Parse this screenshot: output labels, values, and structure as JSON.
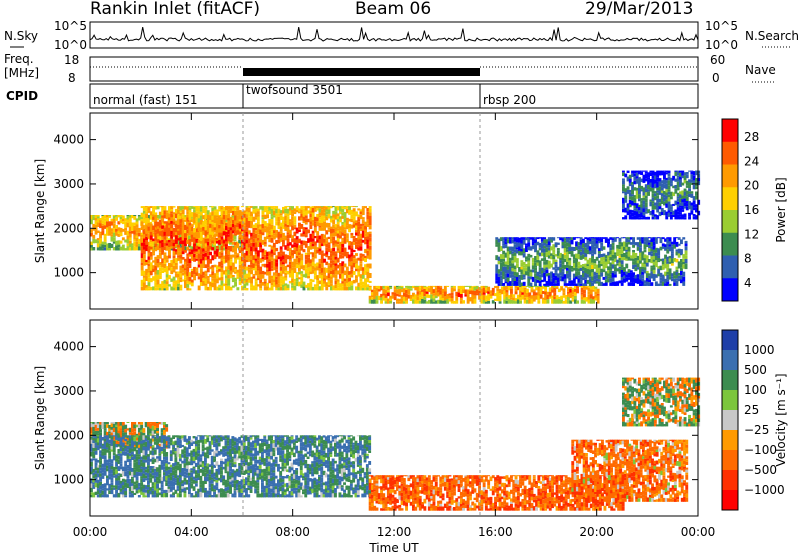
{
  "header": {
    "station": "Rankin Inlet (fitACF)",
    "beam": "Beam 06",
    "date": "29/Mar/2013"
  },
  "noise_panel": {
    "left_label": "N.Sky",
    "right_label": "N.Search",
    "left_ticks": [
      "10^5",
      "10^0"
    ],
    "right_ticks": [
      "10^5",
      "10^0"
    ]
  },
  "freq_panel": {
    "left_label_1": "Freq.",
    "left_label_2": "[MHz]",
    "right_label": "Nave",
    "left_ticks": [
      "18",
      "8"
    ],
    "right_ticks": [
      "60",
      "0"
    ]
  },
  "cpid_panel": {
    "label": "CPID",
    "modes": [
      {
        "name": "normal (fast) 151",
        "start": 0.0
      },
      {
        "name": "twofsound 3501",
        "start": 6.0
      },
      {
        "name": "rbsp 200",
        "start": 15.5
      }
    ]
  },
  "axes": {
    "ylabel": "Slant Range [km]",
    "yticks": [
      "1000",
      "2000",
      "3000",
      "4000"
    ],
    "xlabel": "Time UT",
    "xticks": [
      "00:00",
      "04:00",
      "08:00",
      "12:00",
      "16:00",
      "20:00",
      "00:00"
    ]
  },
  "colorbars": {
    "power": {
      "label": "Power [dB]",
      "ticks": [
        "28",
        "24",
        "20",
        "16",
        "12",
        "8",
        "4"
      ],
      "colors": [
        "#ff0000",
        "#ff5a00",
        "#ff9a00",
        "#ffd000",
        "#9acd32",
        "#3c8c50",
        "#2f5fb0",
        "#0000ff"
      ]
    },
    "velocity": {
      "label": "Velocity [m s⁻¹]",
      "ticks": [
        "1000",
        "500",
        "100",
        "25",
        "−25",
        "−100",
        "−500",
        "−1000"
      ],
      "colors": [
        "#1f3fa8",
        "#3a6fb0",
        "#3c8c50",
        "#7cc63c",
        "#c8c8c8",
        "#ff9a00",
        "#ff6a00",
        "#ff3000",
        "#ff0000"
      ]
    }
  },
  "chart_data": [
    {
      "type": "heatmap",
      "title": "Power [dB]",
      "xlabel": "Time UT",
      "ylabel": "Slant Range [km]",
      "xlim": [
        0,
        24
      ],
      "ylim": [
        180,
        4600
      ],
      "colorbar_range": [
        0,
        30
      ],
      "dominant_bands": [
        {
          "t_start": 0.0,
          "t_end": 6.0,
          "range_km": [
            1500,
            2300
          ],
          "power_db": 22
        },
        {
          "t_start": 2.0,
          "t_end": 11.0,
          "range_km": [
            600,
            2500
          ],
          "power_db": 26
        },
        {
          "t_start": 11.0,
          "t_end": 20.0,
          "range_km": [
            300,
            700
          ],
          "power_db": 24
        },
        {
          "t_start": 16.0,
          "t_end": 23.5,
          "range_km": [
            700,
            1800
          ],
          "power_db": 12
        },
        {
          "t_start": 21.0,
          "t_end": 24.0,
          "range_km": [
            2200,
            3300
          ],
          "power_db": 10
        }
      ]
    },
    {
      "type": "heatmap",
      "title": "Velocity [m s⁻¹]",
      "xlabel": "Time UT",
      "ylabel": "Slant Range [km]",
      "xlim": [
        0,
        24
      ],
      "ylim": [
        180,
        4600
      ],
      "colorbar_range": [
        -1000,
        1000
      ],
      "dominant_bands": [
        {
          "t_start": 0.0,
          "t_end": 3.0,
          "range_km": [
            1700,
            2300
          ],
          "velocity": 0
        },
        {
          "t_start": 0.0,
          "t_end": 11.0,
          "range_km": [
            600,
            2000
          ],
          "velocity": 300
        },
        {
          "t_start": 11.0,
          "t_end": 21.0,
          "range_km": [
            300,
            1100
          ],
          "velocity": -300
        },
        {
          "t_start": 19.0,
          "t_end": 23.5,
          "range_km": [
            500,
            1900
          ],
          "velocity": -250
        },
        {
          "t_start": 21.0,
          "t_end": 24.0,
          "range_km": [
            2200,
            3300
          ],
          "velocity": 0
        }
      ]
    }
  ]
}
